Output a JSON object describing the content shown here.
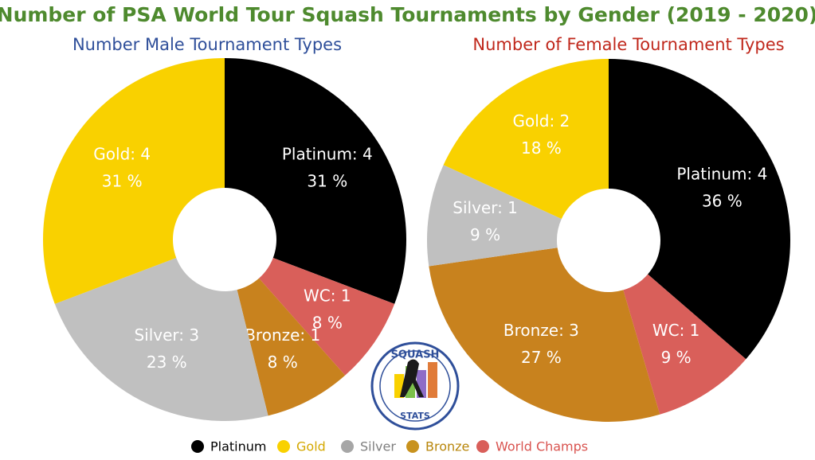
{
  "title": "Number of PSA World Tour Squash Tournaments by Gender (2019 - 2020)",
  "chart_data": [
    {
      "type": "donut",
      "title": "Number Male Tournament Types",
      "title_color": "#2f4f9a",
      "categories": [
        "Platinum",
        "WC",
        "Bronze",
        "Silver",
        "Gold"
      ],
      "values": [
        4,
        1,
        1,
        3,
        4
      ],
      "value_labels": [
        "Platinum: 4",
        "WC: 1",
        "Bronze: 1",
        "Silver: 3",
        "Gold: 4"
      ],
      "percent_labels": [
        "31 %",
        "8 %",
        "8 %",
        "23 %",
        "31 %"
      ],
      "colors": [
        "#000000",
        "#d95f5a",
        "#c8821e",
        "#c0c0c0",
        "#f9d100"
      ]
    },
    {
      "type": "donut",
      "title": "Number of Female Tournament Types",
      "title_color": "#c0281c",
      "categories": [
        "Platinum",
        "WC",
        "Bronze",
        "Silver",
        "Gold"
      ],
      "values": [
        4,
        1,
        3,
        1,
        2
      ],
      "value_labels": [
        "Platinum: 4",
        "WC: 1",
        "Bronze: 3",
        "Silver: 1",
        "Gold: 2"
      ],
      "percent_labels": [
        "36 %",
        "9 %",
        "27 %",
        "9 %",
        "18 %"
      ],
      "colors": [
        "#000000",
        "#d95f5a",
        "#c8821e",
        "#c0c0c0",
        "#f9d100"
      ]
    }
  ],
  "legend": [
    {
      "name": "Platinum",
      "color": "#000000",
      "text_color": "#000000"
    },
    {
      "name": "Gold",
      "color": "#f9d100",
      "text_color": "#d4a800"
    },
    {
      "name": "Silver",
      "color": "#a6a6a6",
      "text_color": "#7f7f7f"
    },
    {
      "name": "Bronze",
      "color": "#c8921e",
      "text_color": "#b8860b"
    },
    {
      "name": "World Champs",
      "color": "#d95f5a",
      "text_color": "#d9534f"
    }
  ],
  "logo": {
    "top": "SQUASH",
    "bottom": "STATS"
  }
}
